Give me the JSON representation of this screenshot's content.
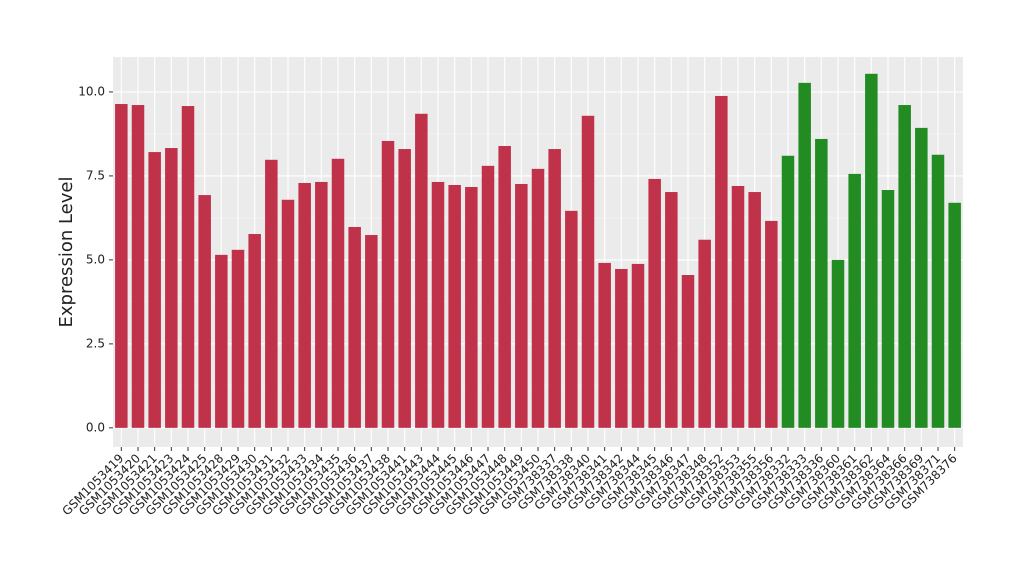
{
  "chart_data": {
    "type": "bar",
    "y_label": "Expression Level",
    "categories": [
      "GSM1053419",
      "GSM1053420",
      "GSM1053421",
      "GSM1053423",
      "GSM1053424",
      "GSM1053425",
      "GSM1053428",
      "GSM1053429",
      "GSM1053430",
      "GSM1053431",
      "GSM1053432",
      "GSM1053433",
      "GSM1053434",
      "GSM1053435",
      "GSM1053436",
      "GSM1053437",
      "GSM1053438",
      "GSM1053441",
      "GSM1053443",
      "GSM1053444",
      "GSM1053445",
      "GSM1053446",
      "GSM1053447",
      "GSM1053448",
      "GSM1053449",
      "GSM1053450",
      "GSM738337",
      "GSM738338",
      "GSM738340",
      "GSM738341",
      "GSM738342",
      "GSM738344",
      "GSM738345",
      "GSM738346",
      "GSM738347",
      "GSM738348",
      "GSM738352",
      "GSM738353",
      "GSM738355",
      "GSM738356",
      "GSM738332",
      "GSM738333",
      "GSM738336",
      "GSM738360",
      "GSM738361",
      "GSM738362",
      "GSM738364",
      "GSM738366",
      "GSM738369",
      "GSM738371",
      "GSM738376"
    ],
    "values": [
      9.64,
      9.61,
      8.21,
      8.33,
      9.58,
      6.93,
      5.15,
      5.3,
      5.77,
      7.98,
      6.79,
      7.29,
      7.32,
      8.01,
      5.98,
      5.74,
      8.54,
      8.3,
      9.35,
      7.32,
      7.23,
      7.17,
      7.8,
      8.39,
      7.26,
      7.71,
      8.3,
      6.46,
      9.29,
      4.91,
      4.73,
      4.88,
      7.41,
      7.02,
      4.55,
      5.6,
      9.88,
      7.2,
      7.02,
      6.16,
      8.1,
      10.27,
      8.6,
      5.0,
      7.56,
      10.54,
      7.08,
      9.61,
      8.93,
      8.13,
      6.7
    ],
    "colors": [
      "#c0314a",
      "#c0314a",
      "#c0314a",
      "#c0314a",
      "#c0314a",
      "#c0314a",
      "#c0314a",
      "#c0314a",
      "#c0314a",
      "#c0314a",
      "#c0314a",
      "#c0314a",
      "#c0314a",
      "#c0314a",
      "#c0314a",
      "#c0314a",
      "#c0314a",
      "#c0314a",
      "#c0314a",
      "#c0314a",
      "#c0314a",
      "#c0314a",
      "#c0314a",
      "#c0314a",
      "#c0314a",
      "#c0314a",
      "#c0314a",
      "#c0314a",
      "#c0314a",
      "#c0314a",
      "#c0314a",
      "#c0314a",
      "#c0314a",
      "#c0314a",
      "#c0314a",
      "#c0314a",
      "#c0314a",
      "#c0314a",
      "#c0314a",
      "#c0314a",
      "#228b22",
      "#228b22",
      "#228b22",
      "#228b22",
      "#228b22",
      "#228b22",
      "#228b22",
      "#228b22",
      "#228b22",
      "#228b22",
      "#228b22"
    ],
    "ylim": [
      -0.57,
      11.04
    ],
    "yticks": [
      {
        "value": 0,
        "label": "0.0"
      },
      {
        "value": 2.5,
        "label": "2.5"
      },
      {
        "value": 5,
        "label": "5.0"
      },
      {
        "value": 7.5,
        "label": "7.5"
      },
      {
        "value": 10,
        "label": "10.0"
      }
    ],
    "grid": true
  }
}
